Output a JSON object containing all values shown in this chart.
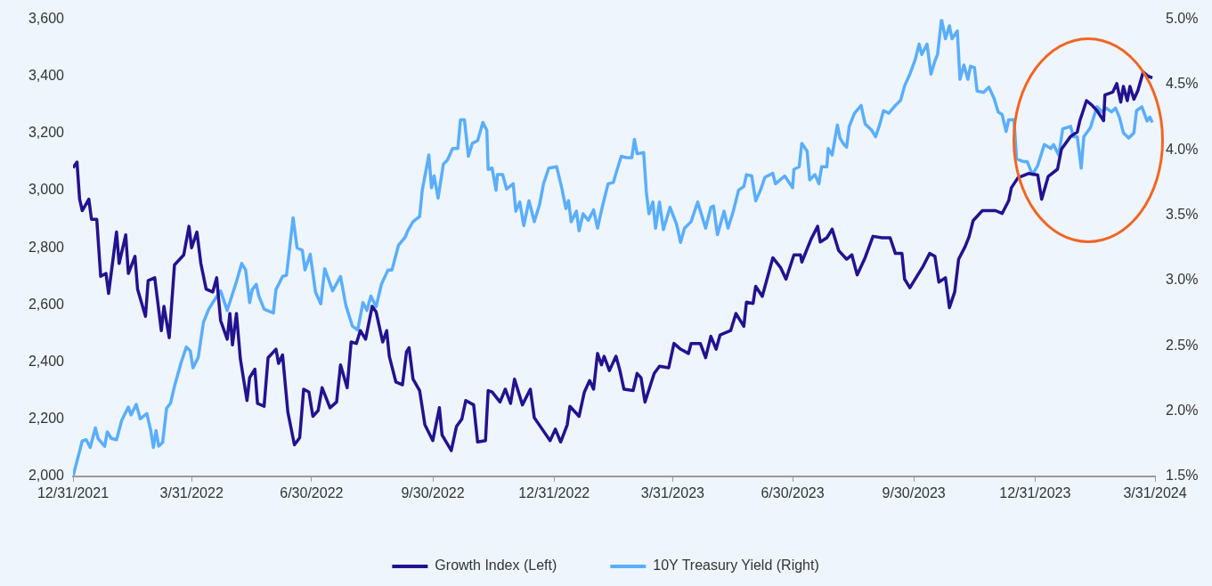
{
  "chart_data": {
    "type": "line",
    "legend": "bottom",
    "marker": "none",
    "xlim": [
      "2021-12-31",
      "2024-03-31"
    ],
    "xticks": [
      {
        "value": "2021-12-31",
        "label": "12/31/2021"
      },
      {
        "value": "2022-03-31",
        "label": "3/31/2022"
      },
      {
        "value": "2022-06-30",
        "label": "6/30/2022"
      },
      {
        "value": "2022-09-30",
        "label": "9/30/2022"
      },
      {
        "value": "2022-12-31",
        "label": "12/31/2022"
      },
      {
        "value": "2023-03-31",
        "label": "3/31/2023"
      },
      {
        "value": "2023-06-30",
        "label": "6/30/2023"
      },
      {
        "value": "2023-09-30",
        "label": "9/30/2023"
      },
      {
        "value": "2023-12-31",
        "label": "12/31/2023"
      },
      {
        "value": "2024-03-31",
        "label": "3/31/2024"
      }
    ],
    "ylim": [
      2000,
      3600
    ],
    "yticks": [
      {
        "value": 2000,
        "label": "2,000"
      },
      {
        "value": 2200,
        "label": "2,200"
      },
      {
        "value": 2400,
        "label": "2,400"
      },
      {
        "value": 2600,
        "label": "2,600"
      },
      {
        "value": 2800,
        "label": "2,800"
      },
      {
        "value": 3000,
        "label": "3,000"
      },
      {
        "value": 3200,
        "label": "3,200"
      },
      {
        "value": 3400,
        "label": "3,400"
      },
      {
        "value": 3600,
        "label": "3,600"
      }
    ],
    "y2lim": [
      1.5,
      5.0
    ],
    "y2ticks": [
      {
        "value": 1.5,
        "label": "1.5%"
      },
      {
        "value": 2.0,
        "label": "2.0%"
      },
      {
        "value": 2.5,
        "label": "2.5%"
      },
      {
        "value": 3.0,
        "label": "3.0%"
      },
      {
        "value": 3.5,
        "label": "3.5%"
      },
      {
        "value": 4.0,
        "label": "4.0%"
      },
      {
        "value": 4.5,
        "label": "4.5%"
      },
      {
        "value": 5.0,
        "label": "5.0%"
      }
    ],
    "series": [
      {
        "name": "Growth Index (Left)",
        "color": "#23128f",
        "x": [
          "2021-12-31",
          "2022-01-03",
          "2022-01-05",
          "2022-01-07",
          "2022-01-12",
          "2022-01-14",
          "2022-01-18",
          "2022-01-21",
          "2022-01-25",
          "2022-01-27",
          "2022-02-02",
          "2022-02-04",
          "2022-02-09",
          "2022-02-11",
          "2022-02-16",
          "2022-02-18",
          "2022-02-24",
          "2022-02-26",
          "2022-03-03",
          "2022-03-08",
          "2022-03-10",
          "2022-03-14",
          "2022-03-18",
          "2022-03-25",
          "2022-03-29",
          "2022-03-31",
          "2022-04-04",
          "2022-04-07",
          "2022-04-11",
          "2022-04-16",
          "2022-04-19",
          "2022-04-22",
          "2022-04-27",
          "2022-04-29",
          "2022-05-01",
          "2022-05-04",
          "2022-05-07",
          "2022-05-12",
          "2022-05-14",
          "2022-05-18",
          "2022-05-20",
          "2022-05-25",
          "2022-05-28",
          "2022-06-03",
          "2022-06-05",
          "2022-06-08",
          "2022-06-12",
          "2022-06-17",
          "2022-06-21",
          "2022-06-24",
          "2022-06-28",
          "2022-07-01",
          "2022-07-05",
          "2022-07-08",
          "2022-07-14",
          "2022-07-19",
          "2022-07-22",
          "2022-07-27",
          "2022-07-30",
          "2022-08-03",
          "2022-08-06",
          "2022-08-10",
          "2022-08-15",
          "2022-08-18",
          "2022-08-23",
          "2022-08-26",
          "2022-08-28",
          "2022-09-02",
          "2022-09-07",
          "2022-09-10",
          "2022-09-12",
          "2022-09-15",
          "2022-09-20",
          "2022-09-24",
          "2022-09-30",
          "2022-10-05",
          "2022-10-07",
          "2022-10-14",
          "2022-10-18",
          "2022-10-22",
          "2022-10-25",
          "2022-10-31",
          "2022-11-03",
          "2022-11-09",
          "2022-11-11",
          "2022-11-14",
          "2022-11-20",
          "2022-11-24",
          "2022-11-28",
          "2022-12-01",
          "2022-12-07",
          "2022-12-13",
          "2022-12-16",
          "2022-12-22",
          "2022-12-28",
          "2023-01-01",
          "2023-01-05",
          "2023-01-10",
          "2023-01-12",
          "2023-01-19",
          "2023-01-23",
          "2023-01-27",
          "2023-01-30",
          "2023-02-02",
          "2023-02-05",
          "2023-02-07",
          "2023-02-11",
          "2023-02-16",
          "2023-02-19",
          "2023-02-22",
          "2023-03-01",
          "2023-03-04",
          "2023-03-07",
          "2023-03-10",
          "2023-03-17",
          "2023-03-21",
          "2023-03-28",
          "2023-04-01",
          "2023-04-06",
          "2023-04-12",
          "2023-04-14",
          "2023-04-21",
          "2023-04-25",
          "2023-04-29",
          "2023-05-03",
          "2023-05-06",
          "2023-05-14",
          "2023-05-18",
          "2023-05-24",
          "2023-05-26",
          "2023-05-31",
          "2023-06-02",
          "2023-06-07",
          "2023-06-15",
          "2023-06-21",
          "2023-06-25",
          "2023-07-01",
          "2023-07-06",
          "2023-07-07",
          "2023-07-14",
          "2023-07-19",
          "2023-07-21",
          "2023-07-26",
          "2023-07-30",
          "2023-08-04",
          "2023-08-10",
          "2023-08-14",
          "2023-08-18",
          "2023-08-24",
          "2023-08-30",
          "2023-09-06",
          "2023-09-12",
          "2023-09-16",
          "2023-09-21",
          "2023-09-23",
          "2023-09-27",
          "2023-10-03",
          "2023-10-07",
          "2023-10-12",
          "2023-10-16",
          "2023-10-19",
          "2023-10-24",
          "2023-10-27",
          "2023-10-31",
          "2023-11-03",
          "2023-11-08",
          "2023-11-11",
          "2023-11-14",
          "2023-11-21",
          "2023-12-01",
          "2023-12-06",
          "2023-12-11",
          "2023-12-13",
          "2023-12-18",
          "2023-12-26",
          "2024-01-02",
          "2024-01-05",
          "2024-01-10",
          "2024-01-17",
          "2024-01-20",
          "2024-01-27",
          "2024-02-01",
          "2024-02-03",
          "2024-02-08",
          "2024-02-12",
          "2024-02-16",
          "2024-02-21",
          "2024-02-22",
          "2024-02-28",
          "2024-03-02",
          "2024-03-05",
          "2024-03-07",
          "2024-03-10",
          "2024-03-12",
          "2024-03-15",
          "2024-03-18",
          "2024-03-22",
          "2024-03-26",
          "2024-03-29"
        ],
        "values": [
          3080,
          3100,
          2970,
          2930,
          2970,
          2900,
          2900,
          2700,
          2710,
          2640,
          2855,
          2745,
          2845,
          2710,
          2770,
          2655,
          2560,
          2685,
          2695,
          2510,
          2595,
          2485,
          2740,
          2775,
          2875,
          2800,
          2855,
          2745,
          2655,
          2645,
          2695,
          2545,
          2480,
          2570,
          2460,
          2570,
          2410,
          2265,
          2345,
          2375,
          2255,
          2245,
          2415,
          2445,
          2395,
          2425,
          2225,
          2110,
          2135,
          2305,
          2295,
          2210,
          2230,
          2310,
          2240,
          2260,
          2390,
          2310,
          2470,
          2465,
          2510,
          2480,
          2595,
          2575,
          2470,
          2510,
          2420,
          2330,
          2320,
          2435,
          2450,
          2340,
          2300,
          2180,
          2125,
          2240,
          2145,
          2090,
          2175,
          2200,
          2265,
          2250,
          2120,
          2125,
          2300,
          2295,
          2260,
          2305,
          2255,
          2340,
          2250,
          2305,
          2205,
          2165,
          2125,
          2165,
          2120,
          2180,
          2245,
          2210,
          2295,
          2335,
          2305,
          2430,
          2390,
          2420,
          2370,
          2420,
          2370,
          2305,
          2300,
          2360,
          2345,
          2260,
          2360,
          2385,
          2380,
          2465,
          2445,
          2430,
          2465,
          2465,
          2415,
          2490,
          2445,
          2495,
          2510,
          2570,
          2525,
          2610,
          2605,
          2665,
          2630,
          2765,
          2730,
          2690,
          2775,
          2775,
          2750,
          2830,
          2875,
          2820,
          2835,
          2865,
          2790,
          2760,
          2775,
          2705,
          2765,
          2840,
          2835,
          2835,
          2780,
          2780,
          2690,
          2660,
          2705,
          2735,
          2780,
          2770,
          2680,
          2695,
          2590,
          2645,
          2760,
          2805,
          2840,
          2895,
          2930,
          2930,
          2920,
          2965,
          3010,
          3045,
          3060,
          3055,
          2970,
          3050,
          3075,
          3145,
          3190,
          3205,
          3245,
          3315,
          3300,
          3280,
          3245,
          3335,
          3345,
          3375,
          3310,
          3365,
          3315,
          3365,
          3320,
          3350,
          3415,
          3400,
          3395
        ]
      },
      {
        "name": "10Y Treasury Yield (Right)",
        "color": "#5aaefc",
        "axis": "y2",
        "x": [
          "2021-12-31",
          "2022-01-07",
          "2022-01-10",
          "2022-01-13",
          "2022-01-17",
          "2022-01-19",
          "2022-01-24",
          "2022-01-26",
          "2022-01-29",
          "2022-02-02",
          "2022-02-06",
          "2022-02-11",
          "2022-02-13",
          "2022-02-17",
          "2022-02-20",
          "2022-02-25",
          "2022-02-28",
          "2022-03-02",
          "2022-03-04",
          "2022-03-06",
          "2022-03-09",
          "2022-03-12",
          "2022-03-15",
          "2022-03-18",
          "2022-03-23",
          "2022-03-27",
          "2022-03-30",
          "2022-04-01",
          "2022-04-05",
          "2022-04-09",
          "2022-04-13",
          "2022-04-16",
          "2022-04-22",
          "2022-04-27",
          "2022-05-04",
          "2022-05-08",
          "2022-05-11",
          "2022-05-14",
          "2022-05-16",
          "2022-05-19",
          "2022-05-21",
          "2022-05-25",
          "2022-06-01",
          "2022-06-03",
          "2022-06-08",
          "2022-06-11",
          "2022-06-16",
          "2022-06-19",
          "2022-06-23",
          "2022-06-25",
          "2022-06-29",
          "2022-07-03",
          "2022-07-07",
          "2022-07-10",
          "2022-07-16",
          "2022-07-22",
          "2022-07-26",
          "2022-07-31",
          "2022-08-04",
          "2022-08-08",
          "2022-08-11",
          "2022-08-14",
          "2022-08-18",
          "2022-08-22",
          "2022-08-27",
          "2022-08-30",
          "2022-09-04",
          "2022-09-09",
          "2022-09-11",
          "2022-09-15",
          "2022-09-20",
          "2022-09-22",
          "2022-09-27",
          "2022-09-29",
          "2022-10-01",
          "2022-10-04",
          "2022-10-08",
          "2022-10-11",
          "2022-10-15",
          "2022-10-19",
          "2022-10-21",
          "2022-10-24",
          "2022-10-27",
          "2022-10-30",
          "2022-11-03",
          "2022-11-07",
          "2022-11-10",
          "2022-11-11",
          "2022-11-14",
          "2022-11-17",
          "2022-11-18",
          "2022-11-22",
          "2022-11-25",
          "2022-11-30",
          "2022-12-02",
          "2022-12-05",
          "2022-12-08",
          "2022-12-12",
          "2022-12-16",
          "2022-12-20",
          "2022-12-23",
          "2022-12-27",
          "2023-01-02",
          "2023-01-06",
          "2023-01-09",
          "2023-01-11",
          "2023-01-13",
          "2023-01-17",
          "2023-01-19",
          "2023-01-22",
          "2023-01-26",
          "2023-01-30",
          "2023-02-02",
          "2023-02-06",
          "2023-02-10",
          "2023-02-14",
          "2023-02-16",
          "2023-02-20",
          "2023-02-24",
          "2023-02-28",
          "2023-03-02",
          "2023-03-04",
          "2023-03-09",
          "2023-03-11",
          "2023-03-13",
          "2023-03-16",
          "2023-03-18",
          "2023-03-21",
          "2023-03-24",
          "2023-03-29",
          "2023-04-03",
          "2023-04-06",
          "2023-04-09",
          "2023-04-14",
          "2023-04-19",
          "2023-04-25",
          "2023-04-29",
          "2023-05-01",
          "2023-05-04",
          "2023-05-09",
          "2023-05-12",
          "2023-05-16",
          "2023-05-20",
          "2023-05-24",
          "2023-05-26",
          "2023-05-30",
          "2023-06-02",
          "2023-06-06",
          "2023-06-09",
          "2023-06-15",
          "2023-06-17",
          "2023-06-24",
          "2023-06-30",
          "2023-07-01",
          "2023-07-05",
          "2023-07-07",
          "2023-07-11",
          "2023-07-13",
          "2023-07-17",
          "2023-07-20",
          "2023-07-22",
          "2023-07-26",
          "2023-07-27",
          "2023-07-30",
          "2023-08-03",
          "2023-08-05",
          "2023-08-08",
          "2023-08-10",
          "2023-08-12",
          "2023-08-16",
          "2023-08-21",
          "2023-08-24",
          "2023-08-29",
          "2023-09-01",
          "2023-09-04",
          "2023-09-07",
          "2023-09-11",
          "2023-09-16",
          "2023-09-20",
          "2023-09-23",
          "2023-09-27",
          "2023-10-01",
          "2023-10-04",
          "2023-10-06",
          "2023-10-10",
          "2023-10-13",
          "2023-10-16",
          "2023-10-18",
          "2023-10-21",
          "2023-10-24",
          "2023-10-27",
          "2023-10-29",
          "2023-11-02",
          "2023-11-04",
          "2023-11-07",
          "2023-11-10",
          "2023-11-12",
          "2023-11-15",
          "2023-11-17",
          "2023-11-22",
          "2023-11-26",
          "2023-11-30",
          "2023-12-03",
          "2023-12-06",
          "2023-12-09",
          "2023-12-11",
          "2023-12-15",
          "2023-12-17",
          "2023-12-22",
          "2023-12-25",
          "2023-12-29",
          "2024-01-02",
          "2024-01-07",
          "2024-01-12",
          "2024-01-14",
          "2024-01-18",
          "2024-01-21",
          "2024-01-27",
          "2024-01-29",
          "2024-02-01",
          "2024-02-04",
          "2024-02-06",
          "2024-02-11",
          "2024-02-16",
          "2024-02-20",
          "2024-02-23",
          "2024-02-27",
          "2024-03-01",
          "2024-03-04",
          "2024-03-07",
          "2024-03-11",
          "2024-03-15",
          "2024-03-17",
          "2024-03-21",
          "2024-03-25",
          "2024-03-27",
          "2024-03-29"
        ],
        "values": [
          1.5,
          1.77,
          1.78,
          1.72,
          1.87,
          1.79,
          1.73,
          1.84,
          1.79,
          1.78,
          1.93,
          2.03,
          1.97,
          2.05,
          1.94,
          1.98,
          1.85,
          1.72,
          1.85,
          1.73,
          1.76,
          2.02,
          2.06,
          2.19,
          2.37,
          2.49,
          2.46,
          2.33,
          2.41,
          2.68,
          2.78,
          2.83,
          2.92,
          2.77,
          2.99,
          3.13,
          3.08,
          2.83,
          2.93,
          2.97,
          2.88,
          2.78,
          2.75,
          2.93,
          3.03,
          3.04,
          3.48,
          3.25,
          3.23,
          3.08,
          3.2,
          2.91,
          2.82,
          3.09,
          2.92,
          3.03,
          2.81,
          2.65,
          2.62,
          2.83,
          2.77,
          2.88,
          2.8,
          2.97,
          3.08,
          3.08,
          3.27,
          3.33,
          3.38,
          3.45,
          3.49,
          3.69,
          3.96,
          3.71,
          3.8,
          3.63,
          3.89,
          3.92,
          4.01,
          4.01,
          4.23,
          4.23,
          3.95,
          4.05,
          4.07,
          4.21,
          4.15,
          3.85,
          3.86,
          3.69,
          3.81,
          3.81,
          3.7,
          3.74,
          3.53,
          3.6,
          3.42,
          3.61,
          3.45,
          3.58,
          3.74,
          3.86,
          3.87,
          3.7,
          3.55,
          3.61,
          3.45,
          3.53,
          3.38,
          3.51,
          3.46,
          3.54,
          3.4,
          3.58,
          3.74,
          3.75,
          3.82,
          3.95,
          3.94,
          3.94,
          4.08,
          3.97,
          3.98,
          3.68,
          3.51,
          3.6,
          3.4,
          3.6,
          3.39,
          3.56,
          3.43,
          3.29,
          3.4,
          3.45,
          3.6,
          3.4,
          3.56,
          3.57,
          3.35,
          3.53,
          3.4,
          3.53,
          3.69,
          3.72,
          3.81,
          3.8,
          3.61,
          3.7,
          3.79,
          3.82,
          3.74,
          3.8,
          3.71,
          3.85,
          3.87,
          4.05,
          3.99,
          3.77,
          3.81,
          3.74,
          3.87,
          3.87,
          4.01,
          3.96,
          4.19,
          4.09,
          4.04,
          4.02,
          4.18,
          4.28,
          4.34,
          4.2,
          4.15,
          4.1,
          4.19,
          4.3,
          4.28,
          4.34,
          4.38,
          4.49,
          4.58,
          4.69,
          4.81,
          4.73,
          4.81,
          4.58,
          4.68,
          4.73,
          5.0,
          4.85,
          4.95,
          4.85,
          4.91,
          4.54,
          4.65,
          4.54,
          4.64,
          4.63,
          4.45,
          4.44,
          4.48,
          4.39,
          4.29,
          4.27,
          4.14,
          4.23,
          4.23,
          3.93,
          3.91,
          3.91,
          3.81,
          3.88,
          4.04,
          4.01,
          4.04,
          3.96,
          4.16,
          4.18,
          4.1,
          4.1,
          3.86,
          4.1,
          4.17,
          4.33,
          4.29,
          4.32,
          4.29,
          4.32,
          4.25,
          4.13,
          4.09,
          4.13,
          4.3,
          4.33,
          4.22,
          4.25,
          4.21
        ]
      }
    ]
  }
}
